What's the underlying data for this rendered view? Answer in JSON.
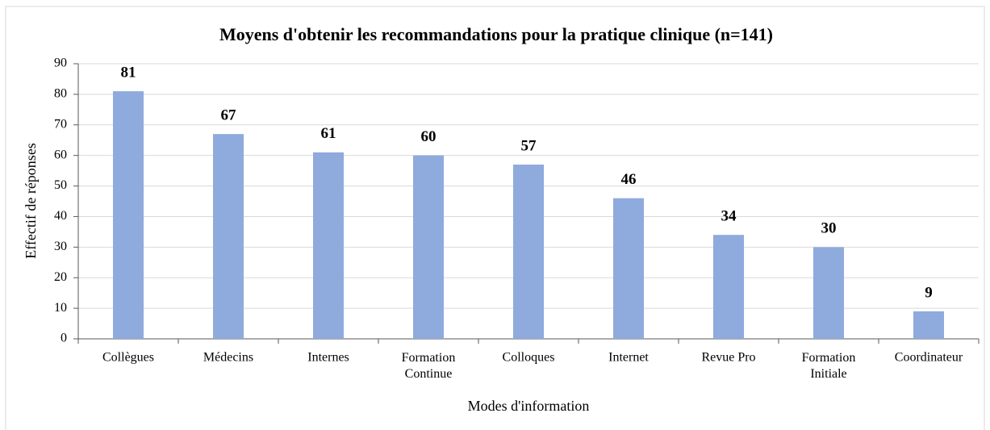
{
  "chart_data": {
    "type": "bar",
    "title": "Moyens d'obtenir les recommandations pour la pratique clinique (n=141)",
    "categories": [
      "Collègues",
      "Médecins",
      "Internes",
      "Formation\nContinue",
      "Colloques",
      "Internet",
      "Revue Pro",
      "Formation\nInitiale",
      "Coordinateur"
    ],
    "values": [
      81,
      67,
      61,
      60,
      57,
      46,
      34,
      30,
      9
    ],
    "color": "#8faadc",
    "x_label": "Modes d'information",
    "y_label": "Effectif de réponses",
    "ylim": [
      0,
      90
    ],
    "yticks": [
      0,
      10,
      20,
      30,
      40,
      50,
      60,
      70,
      80,
      90
    ],
    "grid": true,
    "data_labels": true
  }
}
